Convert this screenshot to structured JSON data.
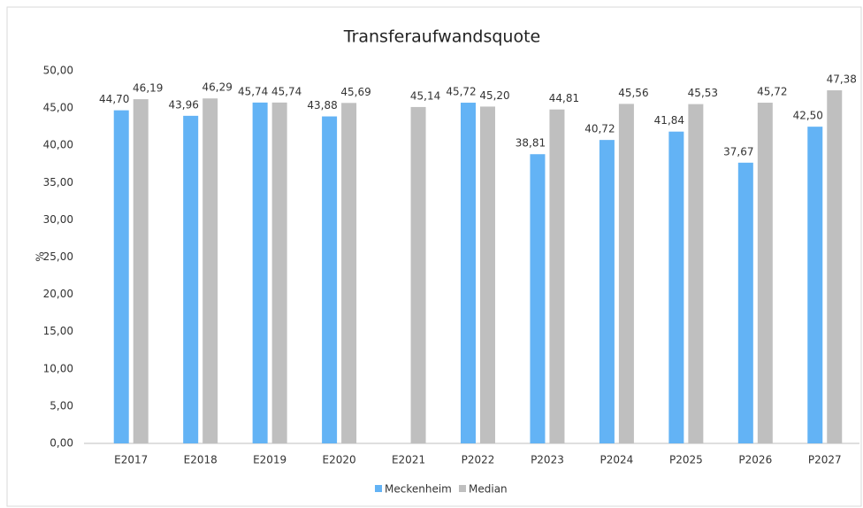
{
  "chart_data": {
    "type": "bar",
    "title": "Transferaufwandsquote",
    "y_label": "%",
    "categories": [
      "E2017",
      "E2018",
      "E2019",
      "E2020",
      "E2021",
      "P2022",
      "P2023",
      "P2024",
      "P2025",
      "P2026",
      "P2027"
    ],
    "series": [
      {
        "name": "Meckenheim",
        "color": "#63b3f5",
        "values": [
          44.7,
          43.96,
          45.74,
          43.88,
          null,
          45.72,
          38.81,
          40.72,
          41.84,
          37.67,
          42.5
        ],
        "value_labels": [
          "44,70",
          "43,96",
          "45,74",
          "43,88",
          null,
          "45,72",
          "38,81",
          "40,72",
          "41,84",
          "37,67",
          "42,50"
        ]
      },
      {
        "name": "Median",
        "color": "#bfbfbf",
        "values": [
          46.19,
          46.29,
          45.74,
          45.69,
          45.14,
          45.2,
          44.81,
          45.56,
          45.53,
          45.72,
          47.38
        ],
        "value_labels": [
          "46,19",
          "46,29",
          "45,74",
          "45,69",
          "45,14",
          "45,20",
          "44,81",
          "45,56",
          "45,53",
          "45,72",
          "47,38"
        ]
      }
    ],
    "ylim": [
      0,
      50
    ],
    "yticks": [
      {
        "value": 0,
        "label": "0,00"
      },
      {
        "value": 5,
        "label": "5,00"
      },
      {
        "value": 10,
        "label": "10,00"
      },
      {
        "value": 15,
        "label": "15,00"
      },
      {
        "value": 20,
        "label": "20,00"
      },
      {
        "value": 25,
        "label": "25,00"
      },
      {
        "value": 30,
        "label": "30,00"
      },
      {
        "value": 35,
        "label": "35,00"
      },
      {
        "value": 40,
        "label": "40,00"
      },
      {
        "value": 45,
        "label": "45,00"
      },
      {
        "value": 50,
        "label": "50,00"
      }
    ],
    "grid": false,
    "legend": "bottom"
  }
}
